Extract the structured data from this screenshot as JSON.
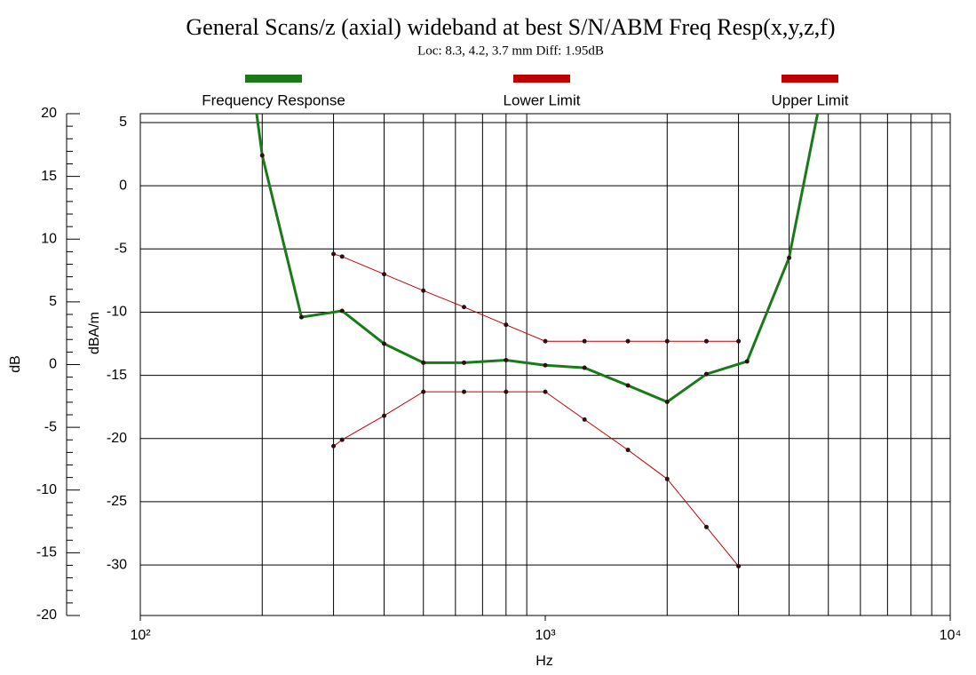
{
  "chart_data": {
    "type": "line",
    "title": "General Scans/z (axial) wideband at best S/N/ABM Freq Resp(x,y,z,f)",
    "subtitle": "Loc: 8.3, 4.2, 3.7 mm Diff: 1.95dB",
    "xlabel": "Hz",
    "ylabel": "dBA/m",
    "y2label": "dB",
    "xscale": "log",
    "xlim": [
      100,
      10000
    ],
    "xticks": [
      {
        "value": 100,
        "label": "10²"
      },
      {
        "value": 1000,
        "label": "10³"
      },
      {
        "value": 10000,
        "label": "10⁴"
      }
    ],
    "xgrid_minor": [
      200,
      300,
      400,
      500,
      600,
      700,
      800,
      900,
      2000,
      3000,
      4000,
      5000,
      6000,
      7000,
      8000,
      9000
    ],
    "ylim": [
      -34,
      5.7
    ],
    "yticks": [
      5,
      0,
      -5,
      -10,
      -15,
      -20,
      -25,
      -30
    ],
    "y2lim": [
      -20,
      20
    ],
    "y2ticks": [
      20,
      15,
      10,
      5,
      0,
      -5,
      -10,
      -15,
      -20
    ],
    "grid": true,
    "series": [
      {
        "name": "Frequency Response",
        "color": "#1a7a1a",
        "x": [
          190,
          200,
          250,
          315,
          400,
          500,
          630,
          800,
          1000,
          1250,
          1600,
          2000,
          2500,
          3150,
          4000,
          5000
        ],
        "values": [
          7.7,
          2.4,
          -10.4,
          -9.9,
          -12.5,
          -14.0,
          -14.0,
          -13.8,
          -14.2,
          -14.4,
          -15.8,
          -17.1,
          -14.9,
          -13.9,
          -5.7,
          10
        ]
      },
      {
        "name": "Lower Limit",
        "color": "#c00000",
        "x": [
          300,
          315,
          400,
          500,
          630,
          800,
          1000,
          1250,
          1600,
          2000,
          2500,
          3000
        ],
        "values": [
          -20.6,
          -20.1,
          -18.2,
          -16.3,
          -16.3,
          -16.3,
          -16.3,
          -18.5,
          -20.9,
          -23.2,
          -27.0,
          -30.1
        ]
      },
      {
        "name": "Upper Limit",
        "color": "#c00000",
        "x": [
          300,
          315,
          400,
          500,
          630,
          800,
          1000,
          1250,
          1600,
          2000,
          2500,
          3000
        ],
        "values": [
          -5.4,
          -5.6,
          -7.0,
          -8.3,
          -9.6,
          -11.0,
          -12.3,
          -12.3,
          -12.3,
          -12.3,
          -12.3,
          -12.3
        ]
      }
    ]
  }
}
